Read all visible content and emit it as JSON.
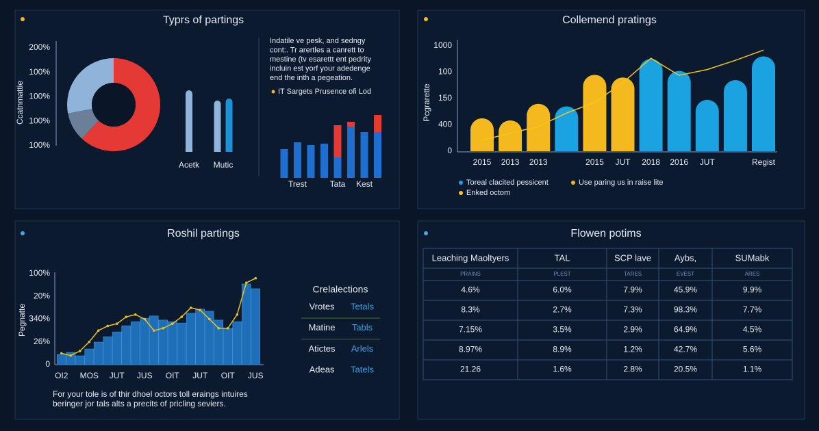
{
  "chart_data": [
    {
      "type": "pie",
      "title": "Typrs of partings",
      "y_label": "Ccatnmattie",
      "axis_labels": [
        "200%",
        "100%",
        "100%",
        "100%",
        "100%"
      ],
      "values": [
        62,
        10,
        28
      ],
      "colors": [
        "#e53935",
        "#6b7f99",
        "#8fb3d9"
      ]
    },
    {
      "type": "bar",
      "categories": [
        "Acetk",
        "Mutic"
      ],
      "ylim": [
        0,
        100
      ],
      "series": [
        {
          "color": "#8fb3d9",
          "values": [
            90,
            75
          ]
        },
        {
          "color": "#1e90d6",
          "values": [
            null,
            78
          ]
        }
      ]
    },
    {
      "type": "stacked_bar",
      "categories": [
        null,
        "Trest",
        null,
        null,
        "Tata",
        null,
        "Kest",
        null
      ],
      "ylim": [
        0,
        100
      ],
      "series": [
        {
          "color": "#1e6fd0",
          "values": [
            42,
            52,
            48,
            50,
            30,
            75,
            67,
            67
          ]
        },
        {
          "color": "#e53935",
          "values": [
            null,
            null,
            null,
            null,
            47,
            7,
            null,
            25
          ]
        }
      ],
      "description": [
        "Indatile ve pesk, and sedngy",
        "cont:. Tr arertles a canrett to",
        "mestine (tv esarettt ent pedrity",
        "incluin est yorf your adedenge",
        "end the inth a pegeation."
      ],
      "legend_entry": {
        "text": "IT Sargets Prusence ofi Lod",
        "color": "#f5b920"
      }
    },
    {
      "type": "bar_line",
      "title": "Collemend pratings",
      "y_label": "Pcgrarette",
      "categories": [
        "2015",
        "2013",
        "2013",
        null,
        "2015",
        "JUT",
        "2018",
        "2016",
        "JUT",
        null,
        "Regist"
      ],
      "ylim": [
        0,
        4
      ],
      "yticks": [
        {
          "value": 0,
          "label": "0"
        },
        {
          "value": 1,
          "label": "400"
        },
        {
          "value": 2,
          "label": "150"
        },
        {
          "value": 3,
          "label": "100"
        },
        {
          "value": 4,
          "label": "1000"
        }
      ],
      "series": [
        {
          "name": "Toreal clacited pessicent",
          "color": "#1aa3e0",
          "values": [
            null,
            null,
            null,
            1.7,
            null,
            null,
            3.5,
            3.05,
            1.95,
            2.7,
            3.6
          ]
        },
        {
          "name": "Use paring us in raise lite",
          "color": "#f5b920",
          "values": [
            1.25,
            1.17,
            1.8,
            null,
            2.9,
            2.8,
            null,
            null,
            null,
            null,
            null
          ]
        },
        {
          "name": "Enked octom",
          "type": "line",
          "color": "#f5c518",
          "values": [
            0.42,
            0.68,
            0.94,
            1.45,
            1.85,
            2.6,
            3.53,
            2.88,
            3.1,
            3.45,
            3.84
          ]
        }
      ]
    },
    {
      "type": "bar_line",
      "title": "Roshil partings",
      "y_label": "Pegnatte",
      "categories": [
        "OI2",
        null,
        null,
        "MOS",
        null,
        null,
        "JUT",
        null,
        null,
        "JUS",
        null,
        null,
        "OIT",
        null,
        null,
        "JUT",
        null,
        null,
        "OIT",
        null,
        null,
        "JUS"
      ],
      "ylim": [
        0,
        4
      ],
      "yticks": [
        {
          "value": 0,
          "label": "0"
        },
        {
          "value": 1,
          "label": "26%"
        },
        {
          "value": 2,
          "label": "340%"
        },
        {
          "value": 3,
          "label": "20%"
        },
        {
          "value": 4,
          "label": "100%"
        }
      ],
      "series": [
        {
          "color": "#1e6fb8",
          "values": [
            0.45,
            0.54,
            0.39,
            0.69,
            0.99,
            1.23,
            1.44,
            1.71,
            1.89,
            2.04,
            2.14,
            1.96,
            1.89,
            1.83,
            2.26,
            2.44,
            2.35,
            1.96,
            1.6,
            1.89,
            3.55,
            3.34
          ]
        },
        {
          "type": "line",
          "color": "#e8c21a",
          "values": [
            0.5,
            0.4,
            0.6,
            1.0,
            1.5,
            1.7,
            1.8,
            2.1,
            2.2,
            2.0,
            1.5,
            1.6,
            1.8,
            2.1,
            2.5,
            2.4,
            2.0,
            1.6,
            1.6,
            2.2,
            3.6,
            3.8
          ]
        }
      ],
      "legend_table": {
        "title": "Crelalections",
        "rows": [
          [
            "Vrotes",
            "Tetals"
          ],
          [
            "Matine",
            "Tabls"
          ],
          [
            "Atictes",
            "Arlels"
          ],
          [
            "Adeas",
            "Tatels"
          ]
        ]
      },
      "note": [
        "For your tole is of thir dhoel octors toll eraings intuires",
        "beringer jor tals alts a precits of pricling seviers."
      ]
    }
  ],
  "table": {
    "title": "Flowen potims",
    "header": [
      "Leaching Maoltyers",
      "TAL",
      "SCP lave",
      "Aybs,",
      "SUMabk"
    ],
    "subheader": [
      "PRAINS",
      "PLEST",
      "TARES",
      "EVEST",
      "ARES"
    ],
    "rows": [
      [
        "4.6%",
        "6.0%",
        "7.9%",
        "45.9%",
        "9.9%"
      ],
      [
        "8.3%",
        "2.7%",
        "7.3%",
        "98.3%",
        "7.7%"
      ],
      [
        "7.15%",
        "3.5%",
        "2.9%",
        "64.9%",
        "4.5%"
      ],
      [
        "8.97%",
        "8.9%",
        "1.2%",
        "42.7%",
        "5.6%"
      ],
      [
        "21.26",
        "1.6%",
        "2.8%",
        "20.5%",
        "1.1%"
      ]
    ]
  }
}
